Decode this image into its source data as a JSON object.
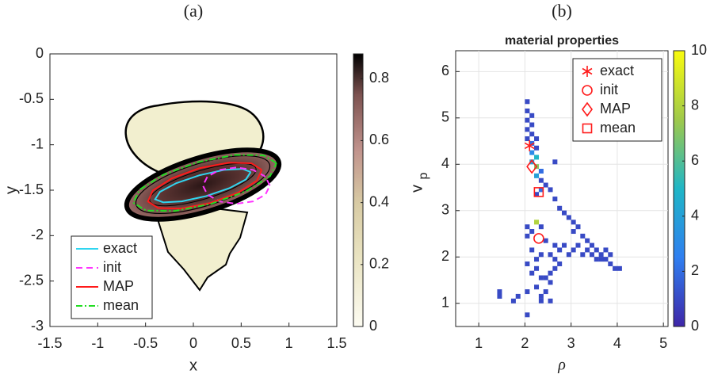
{
  "chart_data": [
    {
      "type": "line",
      "title": "(a)",
      "xlabel": "x",
      "ylabel": "y",
      "xlim": [
        -1.5,
        1.5
      ],
      "ylim": [
        -3,
        0
      ],
      "xticks": [
        -1.5,
        -1,
        -0.5,
        0,
        0.5,
        1,
        1.5
      ],
      "yticks": [
        -3,
        -2.5,
        -2,
        -1.5,
        -1,
        -0.5,
        0
      ],
      "legend": "lower left",
      "colorbar": {
        "lim": [
          0,
          0.88
        ],
        "ticks": [
          0,
          0.2,
          0.4,
          0.6,
          0.8
        ]
      },
      "series": [
        {
          "name": "exact",
          "color": "#30d5f0",
          "dash": "solid",
          "x": [
            0.6,
            0.515,
            0.321,
            0.066,
            -0.179,
            -0.349,
            -0.4,
            -0.315,
            -0.121,
            0.134,
            0.379,
            0.549,
            0.6
          ],
          "values": [
            -1.3,
            -1.266,
            -1.277,
            -1.335,
            -1.423,
            -1.518,
            -1.6,
            -1.634,
            -1.623,
            -1.565,
            -1.477,
            -1.382,
            -1.3
          ]
        },
        {
          "name": "init",
          "color": "#ff33ff",
          "dash": "dashed",
          "x": [
            0.8,
            0.753,
            0.625,
            0.45,
            0.275,
            0.147,
            0.1,
            0.147,
            0.275,
            0.45,
            0.625,
            0.753,
            0.8
          ],
          "values": [
            -1.45,
            -1.35,
            -1.277,
            -1.25,
            -1.277,
            -1.35,
            -1.45,
            -1.55,
            -1.623,
            -1.65,
            -1.623,
            -1.55,
            -1.45
          ]
        },
        {
          "name": "MAP",
          "color": "#ff1a1a",
          "dash": "solid",
          "x": [
            0.715,
            0.608,
            0.37,
            0.064,
            -0.226,
            -0.424,
            -0.475,
            -0.368,
            -0.13,
            0.176,
            0.466,
            0.664,
            0.715
          ],
          "values": [
            -1.276,
            -1.204,
            -1.197,
            -1.258,
            -1.371,
            -1.504,
            -1.624,
            -1.696,
            -1.703,
            -1.642,
            -1.529,
            -1.396,
            -1.276
          ]
        },
        {
          "name": "mean",
          "color": "#22dd22",
          "dash": "dashdot",
          "x": [
            0.869,
            0.734,
            0.436,
            0.053,
            -0.312,
            -0.562,
            -0.629,
            -0.494,
            -0.196,
            0.187,
            0.552,
            0.802,
            0.869
          ],
          "values": [
            -1.202,
            -1.116,
            -1.111,
            -1.19,
            -1.329,
            -1.494,
            -1.638,
            -1.724,
            -1.729,
            -1.65,
            -1.511,
            -1.346,
            -1.202
          ]
        }
      ]
    },
    {
      "type": "heatmap",
      "title": "(b)",
      "subtitle": "material properties",
      "xlabel": "ρ",
      "ylabel": "v",
      "ylabel_subscript": "p",
      "xlim": [
        0.5,
        5.1
      ],
      "ylim": [
        0.5,
        6.45
      ],
      "xticks": [
        1,
        2,
        3,
        4,
        5
      ],
      "yticks": [
        1,
        2,
        3,
        4,
        5,
        6
      ],
      "grid": true,
      "legend": "upper right",
      "colorbar": {
        "lim": [
          0,
          10
        ],
        "ticks": [
          0,
          2,
          4,
          6,
          8,
          10
        ]
      },
      "cells": {
        "x": [
          2.0,
          2.0,
          2.1,
          2.0,
          2.1,
          2.0,
          2.1,
          2.0,
          2.2,
          2.1,
          2.2,
          2.1,
          2.2,
          2.1,
          2.2,
          2.3,
          2.2,
          2.3,
          2.3,
          2.2,
          2.4,
          2.5,
          2.6,
          2.7,
          2.8,
          2.9,
          3.0,
          3.1,
          3.0,
          3.2,
          3.3,
          3.4,
          3.5,
          3.6,
          3.7,
          3.8,
          3.9,
          4.0,
          2.6,
          2.6,
          2.7,
          2.8,
          2.9,
          3.0,
          3.1,
          3.2,
          3.3,
          3.4,
          3.5,
          3.6,
          3.7,
          3.8,
          2.5,
          2.6,
          2.7,
          2.6,
          2.5,
          2.4,
          2.5,
          2.4,
          2.5,
          2.0,
          2.1,
          2.0,
          2.2,
          2.3,
          2.4,
          2.3,
          2.2,
          2.1,
          2.0,
          2.1,
          2.2,
          2.3,
          2.2,
          2.3,
          2.0,
          1.8,
          1.4,
          1.4,
          1.7,
          2.0,
          2.3
        ],
        "y": [
          5.3,
          5.1,
          5.0,
          4.9,
          4.8,
          4.7,
          4.6,
          4.5,
          4.5,
          4.4,
          4.3,
          4.2,
          4.1,
          4.0,
          3.9,
          3.8,
          3.7,
          3.6,
          3.4,
          3.3,
          3.5,
          3.4,
          3.2,
          3.0,
          2.9,
          2.8,
          2.7,
          2.6,
          2.5,
          2.4,
          2.3,
          2.2,
          2.1,
          2.0,
          1.9,
          1.8,
          1.7,
          1.7,
          4.0,
          2.2,
          2.1,
          2.2,
          2.0,
          2.1,
          2.2,
          2.0,
          2.1,
          2.0,
          1.9,
          1.9,
          2.1,
          2.0,
          2.0,
          1.9,
          1.8,
          1.7,
          1.6,
          1.5,
          1.4,
          1.2,
          1.0,
          2.6,
          2.5,
          2.4,
          2.7,
          2.6,
          2.3,
          2.0,
          1.9,
          2.1,
          1.8,
          1.6,
          1.7,
          1.5,
          1.3,
          1.1,
          1.2,
          1.1,
          1.1,
          1.2,
          1.0,
          0.7,
          1.0
        ],
        "values": [
          1,
          1,
          1,
          1,
          1,
          1,
          1,
          1,
          1,
          2,
          1,
          3,
          5,
          4,
          7,
          2,
          4,
          1,
          2,
          1,
          1,
          1,
          1,
          1,
          1,
          1,
          1,
          1,
          1,
          1,
          1,
          1,
          1,
          1,
          1,
          1,
          1,
          1,
          1,
          1,
          1,
          1,
          1,
          1,
          1,
          1,
          1,
          1,
          1,
          1,
          1,
          1,
          1,
          1,
          1,
          1,
          1,
          1,
          1,
          1,
          1,
          1,
          1,
          1,
          8,
          1,
          1,
          1,
          1,
          1,
          1,
          1,
          1,
          1,
          1,
          1,
          1,
          1,
          1,
          1,
          1,
          1,
          1
        ]
      },
      "series": [
        {
          "name": "exact",
          "color": "#ff1a1a",
          "marker": "asterisk",
          "x": [
            2.1
          ],
          "values": [
            4.4
          ]
        },
        {
          "name": "init",
          "color": "#ff1a1a",
          "marker": "circle",
          "x": [
            2.3
          ],
          "values": [
            2.4
          ]
        },
        {
          "name": "MAP",
          "color": "#ff1a1a",
          "marker": "diamond",
          "x": [
            2.15
          ],
          "values": [
            3.95
          ]
        },
        {
          "name": "mean",
          "color": "#ff1a1a",
          "marker": "square",
          "x": [
            2.3
          ],
          "values": [
            3.4
          ]
        }
      ]
    }
  ]
}
